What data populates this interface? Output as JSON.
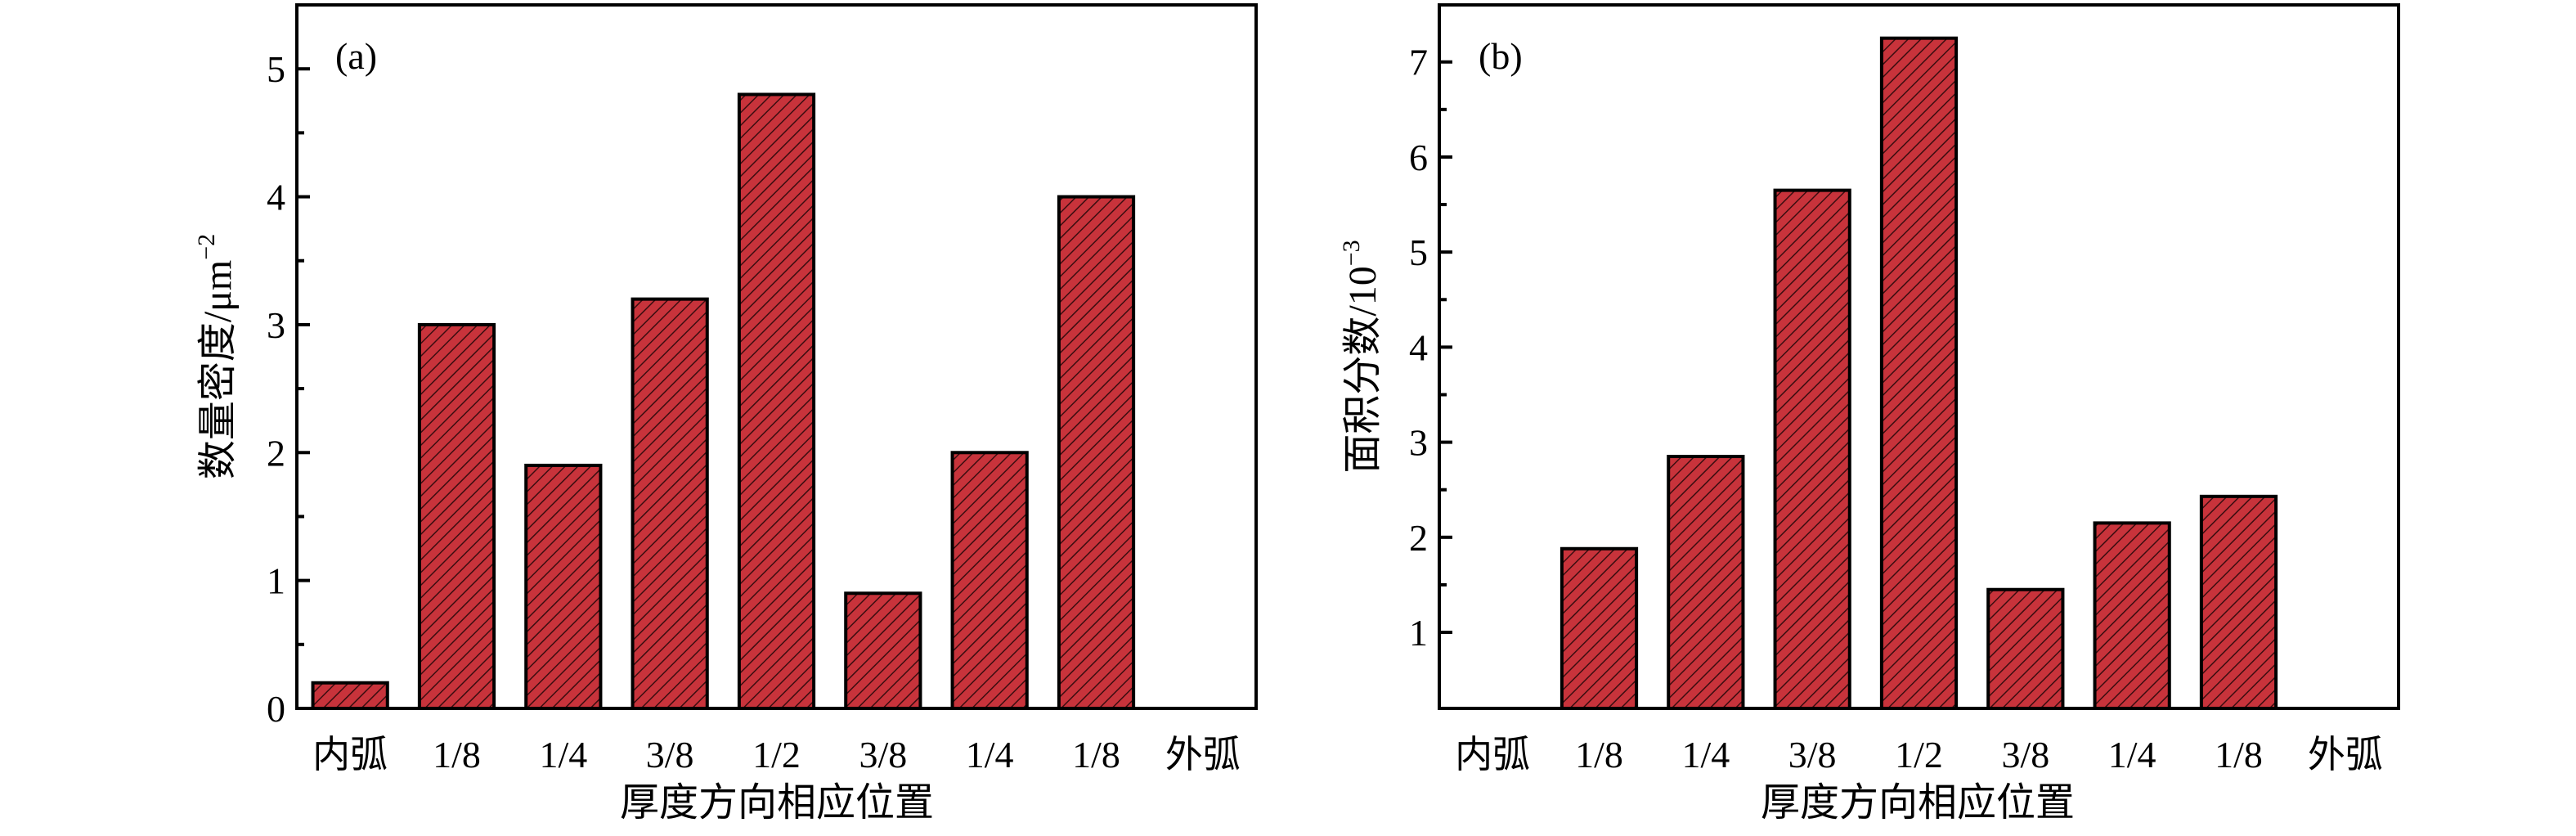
{
  "colors": {
    "bar_fill": "#c8333b",
    "hatch": "#3a0d10",
    "axis": "#000000"
  },
  "chart_data": [
    {
      "type": "bar",
      "panel_label": "(a)",
      "categories": [
        "内弧",
        "1/8",
        "1/4",
        "3/8",
        "1/2",
        "3/8",
        "1/4",
        "1/8",
        "外弧"
      ],
      "values": [
        0.2,
        3.0,
        1.9,
        3.2,
        4.8,
        0.9,
        2.0,
        4.0,
        null
      ],
      "xlabel": "厚度方向相应位置",
      "ylabel": "数量密度/μm",
      "ylabel_sup": "−2",
      "ylim": [
        0,
        5.5
      ],
      "yticks": [
        0,
        1,
        2,
        3,
        4,
        5
      ],
      "ytick_labels": [
        "0",
        "1",
        "2",
        "3",
        "4",
        "5"
      ],
      "grid": false,
      "legend": "none"
    },
    {
      "type": "bar",
      "panel_label": "(b)",
      "categories": [
        "内弧",
        "1/8",
        "1/4",
        "3/8",
        "1/2",
        "3/8",
        "1/4",
        "1/8",
        "外弧"
      ],
      "values": [
        null,
        1.88,
        2.85,
        5.65,
        7.25,
        1.45,
        2.15,
        2.43,
        null
      ],
      "xlabel": "厚度方向相应位置",
      "ylabel": "面积分数/10",
      "ylabel_sup": "−3",
      "ylim": [
        0.2,
        7.6
      ],
      "yticks": [
        1,
        2,
        3,
        4,
        5,
        6,
        7
      ],
      "ytick_labels": [
        "1",
        "2",
        "3",
        "4",
        "5",
        "6",
        "7"
      ],
      "grid": false,
      "legend": "none"
    }
  ]
}
